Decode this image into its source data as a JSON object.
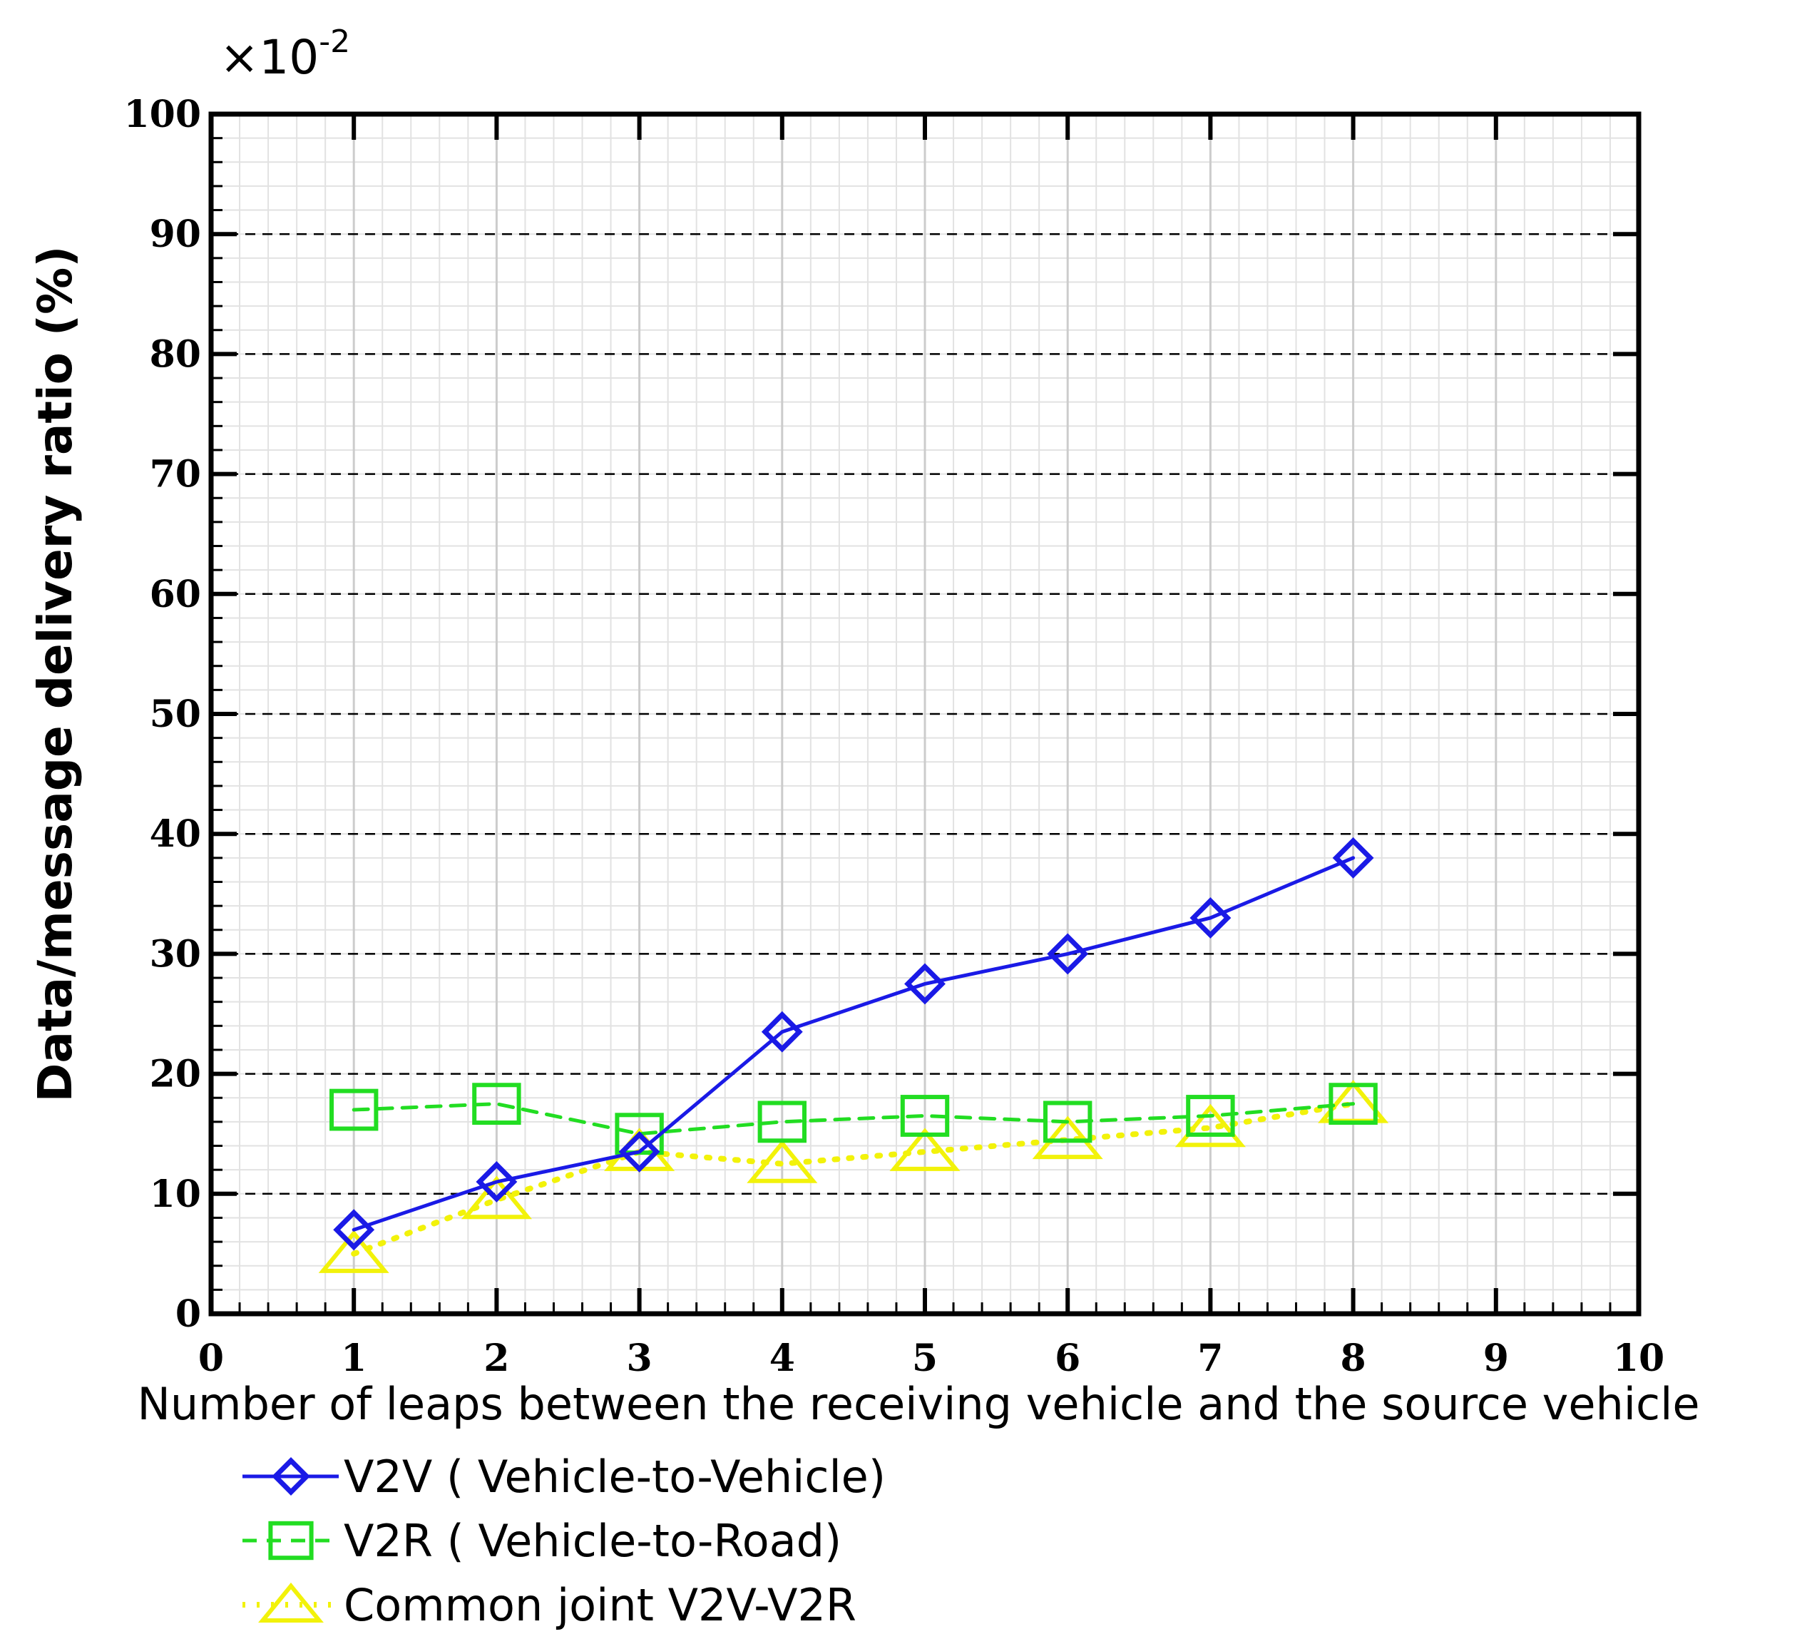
{
  "chart_data": {
    "type": "line",
    "title": "",
    "xlabel": "Number of leaps between the receiving vehicle and the source vehicle",
    "ylabel": "Data/message delivery ratio (%)",
    "scale_multiplier": {
      "base": "×10",
      "exponent": "-2"
    },
    "xlim": [
      0,
      10
    ],
    "ylim": [
      0,
      100
    ],
    "x_ticks": [
      "0",
      "1",
      "2",
      "3",
      "4",
      "5",
      "6",
      "7",
      "8",
      "9",
      "10"
    ],
    "y_ticks": [
      "0",
      "10",
      "20",
      "30",
      "40",
      "50",
      "60",
      "70",
      "80",
      "90",
      "100"
    ],
    "grid": true,
    "legend_position": "bottom",
    "series": [
      {
        "name": "V2V ( Vehicle-to-Vehicle)",
        "color": "#1a1ae6",
        "marker": "diamond",
        "line": "solid",
        "x": [
          1,
          2,
          3,
          4,
          5,
          6,
          7,
          8
        ],
        "values": [
          7,
          11,
          13.5,
          23.5,
          27.5,
          30,
          33,
          38
        ]
      },
      {
        "name": "V2R ( Vehicle-to-Road)",
        "color": "#22dd22",
        "marker": "square",
        "line": "dashed",
        "x": [
          1,
          2,
          3,
          4,
          5,
          6,
          7,
          8
        ],
        "values": [
          17,
          17.5,
          15,
          16,
          16.5,
          16,
          16.5,
          17.5
        ]
      },
      {
        "name": "Common joint V2V-V2R",
        "color": "#f2f20a",
        "marker": "triangle",
        "line": "dotted",
        "x": [
          1,
          2,
          3,
          4,
          5,
          6,
          7,
          8
        ],
        "values": [
          5,
          9.5,
          13.5,
          12.5,
          13.5,
          14.5,
          15.5,
          17.5
        ]
      }
    ]
  }
}
